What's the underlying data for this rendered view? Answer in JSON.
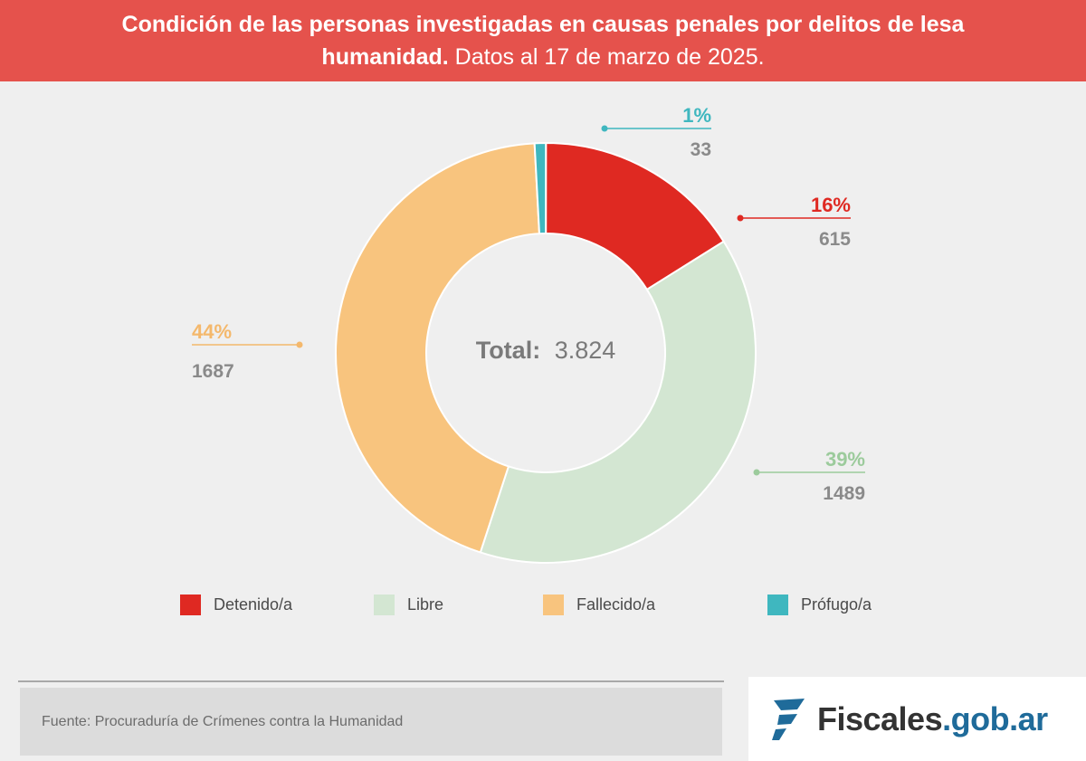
{
  "header": {
    "title_bold": "Condición de las personas investigadas en causas penales por delitos de lesa humanidad.",
    "title_normal": "Datos al 17 de marzo de 2025."
  },
  "chart_data": {
    "type": "pie",
    "subtype": "donut",
    "center_label_bold": "Total:",
    "center_label_value": "3.824",
    "total": 3824,
    "slices": [
      {
        "name": "Detenido/a",
        "value": 615,
        "percent_label": "16%",
        "value_label": "615",
        "color": "#df2922"
      },
      {
        "name": "Libre",
        "value": 1489,
        "percent_label": "39%",
        "value_label": "1489",
        "color": "#d3e6d2"
      },
      {
        "name": "Fallecido/a",
        "value": 1687,
        "percent_label": "44%",
        "value_label": "1687",
        "color": "#f8c47e"
      },
      {
        "name": "Prófugo/a",
        "value": 33,
        "percent_label": "1%",
        "value_label": "33",
        "color": "#3fb7bf"
      }
    ],
    "label_colors": {
      "Detenido/a": "#df2922",
      "Libre": "#9ccb9c",
      "Fallecido/a": "#f4b86c",
      "Prófugo/a": "#3fb7bf"
    },
    "value_label_color": "#8a8a8a",
    "legend": [
      "Detenido/a",
      "Libre",
      "Fallecido/a",
      "Prófugo/a"
    ]
  },
  "footer": {
    "source": "Fuente: Procuraduría de Crímenes contra la Humanidad",
    "logo_main": "Fiscales",
    "logo_domain": ".gob.ar"
  }
}
